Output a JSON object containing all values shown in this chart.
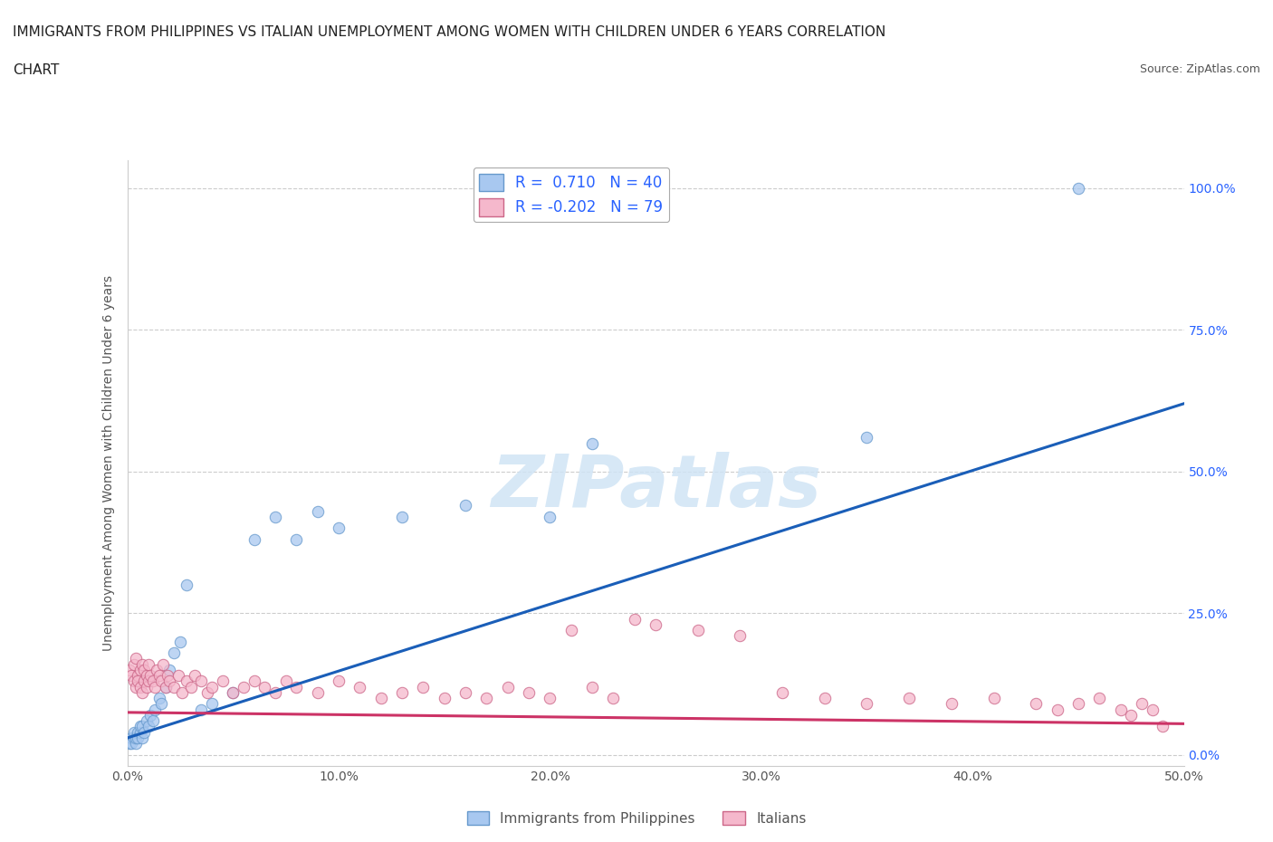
{
  "title_line1": "IMMIGRANTS FROM PHILIPPINES VS ITALIAN UNEMPLOYMENT AMONG WOMEN WITH CHILDREN UNDER 6 YEARS CORRELATION",
  "title_line2": "CHART",
  "source": "Source: ZipAtlas.com",
  "ylabel": "Unemployment Among Women with Children Under 6 years",
  "xlim": [
    0.0,
    0.5
  ],
  "ylim": [
    -0.02,
    1.05
  ],
  "xticks": [
    0.0,
    0.1,
    0.2,
    0.3,
    0.4,
    0.5
  ],
  "xticklabels": [
    "0.0%",
    "10.0%",
    "20.0%",
    "30.0%",
    "40.0%",
    "50.0%"
  ],
  "yticks": [
    0.0,
    0.25,
    0.5,
    0.75,
    1.0
  ],
  "right_ytick_labels": [
    "0.0%",
    "25.0%",
    "50.0%",
    "75.0%",
    "100.0%"
  ],
  "watermark_text": "ZIPatlas",
  "series": [
    {
      "label": "Immigrants from Philippines",
      "R": 0.71,
      "N": 40,
      "color": "#a8c8f0",
      "edge_color": "#6699cc",
      "line_color": "#1a5eb8",
      "x": [
        0.001,
        0.002,
        0.002,
        0.003,
        0.003,
        0.004,
        0.004,
        0.005,
        0.005,
        0.006,
        0.006,
        0.007,
        0.007,
        0.008,
        0.009,
        0.01,
        0.011,
        0.012,
        0.013,
        0.015,
        0.016,
        0.018,
        0.02,
        0.022,
        0.025,
        0.028,
        0.035,
        0.04,
        0.05,
        0.06,
        0.07,
        0.08,
        0.09,
        0.1,
        0.13,
        0.16,
        0.2,
        0.22,
        0.35,
        0.45
      ],
      "y": [
        0.02,
        0.03,
        0.02,
        0.03,
        0.04,
        0.02,
        0.03,
        0.04,
        0.03,
        0.04,
        0.05,
        0.03,
        0.05,
        0.04,
        0.06,
        0.05,
        0.07,
        0.06,
        0.08,
        0.1,
        0.09,
        0.12,
        0.15,
        0.18,
        0.2,
        0.3,
        0.08,
        0.09,
        0.11,
        0.38,
        0.42,
        0.38,
        0.43,
        0.4,
        0.42,
        0.44,
        0.42,
        0.55,
        0.56,
        1.0
      ],
      "trend_x": [
        0.0,
        0.5
      ],
      "trend_y": [
        0.03,
        0.62
      ]
    },
    {
      "label": "Italians",
      "R": -0.202,
      "N": 79,
      "color": "#f5b8cc",
      "edge_color": "#cc6688",
      "line_color": "#cc3366",
      "x": [
        0.001,
        0.002,
        0.003,
        0.003,
        0.004,
        0.004,
        0.005,
        0.005,
        0.006,
        0.006,
        0.007,
        0.007,
        0.008,
        0.008,
        0.009,
        0.009,
        0.01,
        0.01,
        0.011,
        0.012,
        0.013,
        0.014,
        0.015,
        0.016,
        0.017,
        0.018,
        0.019,
        0.02,
        0.022,
        0.024,
        0.026,
        0.028,
        0.03,
        0.032,
        0.035,
        0.038,
        0.04,
        0.045,
        0.05,
        0.055,
        0.06,
        0.065,
        0.07,
        0.075,
        0.08,
        0.09,
        0.1,
        0.11,
        0.12,
        0.13,
        0.14,
        0.15,
        0.16,
        0.17,
        0.18,
        0.19,
        0.2,
        0.21,
        0.22,
        0.23,
        0.24,
        0.25,
        0.27,
        0.29,
        0.31,
        0.33,
        0.35,
        0.37,
        0.39,
        0.41,
        0.43,
        0.44,
        0.45,
        0.46,
        0.47,
        0.475,
        0.48,
        0.485,
        0.49
      ],
      "y": [
        0.15,
        0.14,
        0.13,
        0.16,
        0.12,
        0.17,
        0.14,
        0.13,
        0.15,
        0.12,
        0.11,
        0.16,
        0.13,
        0.15,
        0.12,
        0.14,
        0.13,
        0.16,
        0.14,
        0.13,
        0.12,
        0.15,
        0.14,
        0.13,
        0.16,
        0.12,
        0.14,
        0.13,
        0.12,
        0.14,
        0.11,
        0.13,
        0.12,
        0.14,
        0.13,
        0.11,
        0.12,
        0.13,
        0.11,
        0.12,
        0.13,
        0.12,
        0.11,
        0.13,
        0.12,
        0.11,
        0.13,
        0.12,
        0.1,
        0.11,
        0.12,
        0.1,
        0.11,
        0.1,
        0.12,
        0.11,
        0.1,
        0.22,
        0.12,
        0.1,
        0.24,
        0.23,
        0.22,
        0.21,
        0.11,
        0.1,
        0.09,
        0.1,
        0.09,
        0.1,
        0.09,
        0.08,
        0.09,
        0.1,
        0.08,
        0.07,
        0.09,
        0.08,
        0.05
      ],
      "trend_x": [
        0.0,
        0.5
      ],
      "trend_y": [
        0.075,
        0.055
      ]
    }
  ],
  "background_color": "#ffffff",
  "grid_color": "#cccccc",
  "title_color": "#222222",
  "axis_color": "#555555"
}
